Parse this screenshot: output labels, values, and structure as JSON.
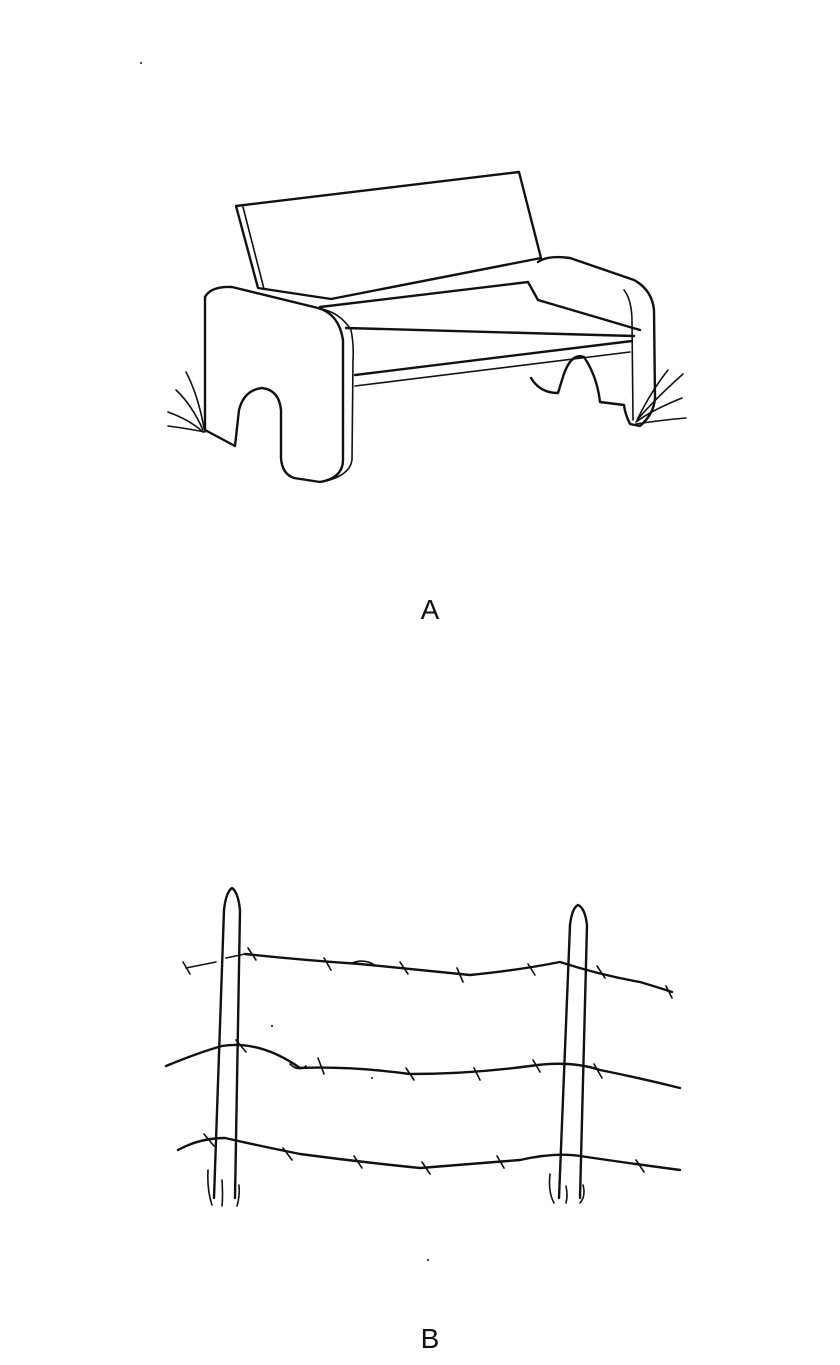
{
  "figures": [
    {
      "label": "A",
      "illustration": "bench-drawing"
    },
    {
      "label": "B",
      "illustration": "barbed-wire-fence-drawing"
    }
  ],
  "colors": {
    "ink": "#111111",
    "paper": "#ffffff"
  }
}
